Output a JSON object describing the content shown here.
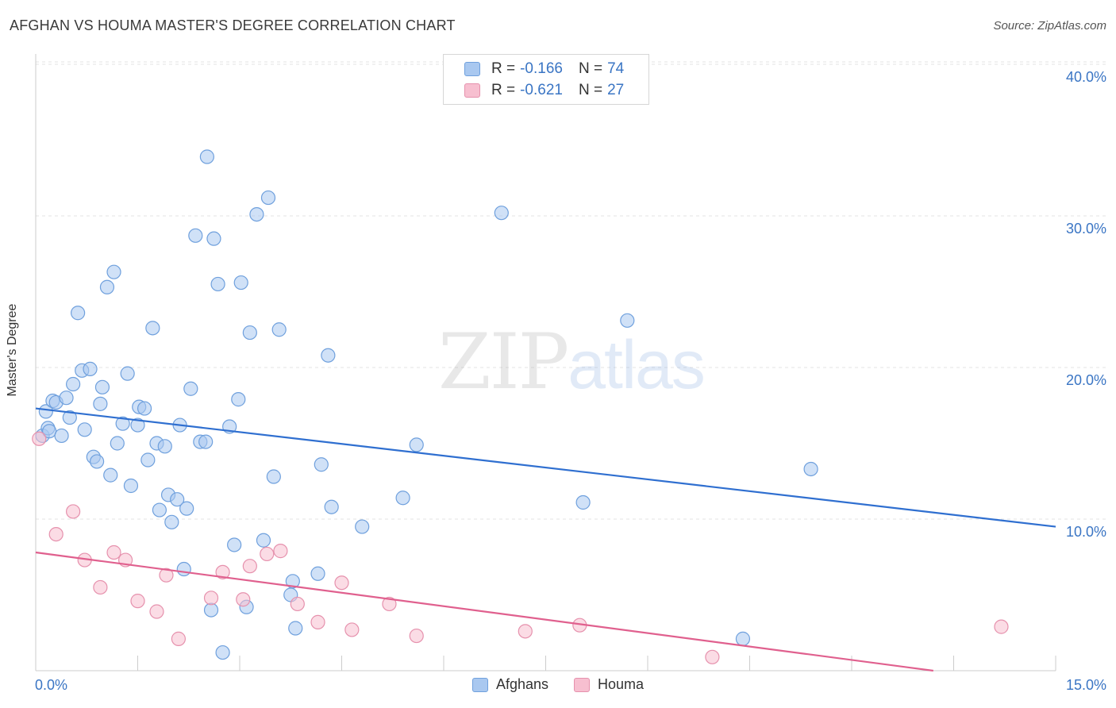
{
  "title": "AFGHAN VS HOUMA MASTER'S DEGREE CORRELATION CHART",
  "source": "Source: ZipAtlas.com",
  "watermark": {
    "left": "ZIP",
    "right": "atlas"
  },
  "colors": {
    "afghans_fill": "#a9c8f0",
    "afghans_stroke": "#6fa0dd",
    "afghans_line": "#2f6fd0",
    "houma_fill": "#f7bfd0",
    "houma_stroke": "#e691ad",
    "houma_line": "#e0608e",
    "tick_label": "#3a75c4",
    "grid": "#e3e3e3"
  },
  "legend_top": [
    {
      "r_label": "R = ",
      "r_value": "-0.166",
      "n_label": "N = ",
      "n_value": "74"
    },
    {
      "r_label": "R = ",
      "r_value": "-0.621",
      "n_label": "N = ",
      "n_value": "27"
    }
  ],
  "legend_bottom": [
    "Afghans",
    "Houma"
  ],
  "chart_data": {
    "type": "scatter",
    "xlabel": "",
    "ylabel": "Master's Degree",
    "xlim": [
      0,
      15
    ],
    "ylim": [
      0,
      41
    ],
    "x_tick_labels": [
      {
        "value": 0,
        "label": "0.0%"
      },
      {
        "value": 15,
        "label": "15.0%"
      }
    ],
    "y_tick_labels": [
      {
        "value": 10,
        "label": "10.0%"
      },
      {
        "value": 20,
        "label": "20.0%"
      },
      {
        "value": 30,
        "label": "30.0%"
      },
      {
        "value": 40,
        "label": "40.0%"
      }
    ],
    "grid": "horizontal-dashed",
    "legend_placement": "top-center",
    "series": [
      {
        "name": "Afghans",
        "trend": [
          [
            0,
            17.3
          ],
          [
            15,
            9.5
          ]
        ],
        "points": [
          [
            0.1,
            15.5
          ],
          [
            0.15,
            17.1
          ],
          [
            0.18,
            16.0
          ],
          [
            0.2,
            15.8
          ],
          [
            0.25,
            17.8
          ],
          [
            0.3,
            17.7
          ],
          [
            0.38,
            15.5
          ],
          [
            0.45,
            18.0
          ],
          [
            0.5,
            16.7
          ],
          [
            0.55,
            18.9
          ],
          [
            0.62,
            23.6
          ],
          [
            0.68,
            19.8
          ],
          [
            0.72,
            15.9
          ],
          [
            0.8,
            19.9
          ],
          [
            0.85,
            14.1
          ],
          [
            0.9,
            13.8
          ],
          [
            0.95,
            17.6
          ],
          [
            0.98,
            18.7
          ],
          [
            1.05,
            25.3
          ],
          [
            1.1,
            12.9
          ],
          [
            1.15,
            26.3
          ],
          [
            1.2,
            15.0
          ],
          [
            1.28,
            16.3
          ],
          [
            1.35,
            19.6
          ],
          [
            1.4,
            12.2
          ],
          [
            1.5,
            16.2
          ],
          [
            1.52,
            17.4
          ],
          [
            1.6,
            17.3
          ],
          [
            1.65,
            13.9
          ],
          [
            1.72,
            22.6
          ],
          [
            1.78,
            15.0
          ],
          [
            1.82,
            10.6
          ],
          [
            1.9,
            14.8
          ],
          [
            1.95,
            11.6
          ],
          [
            2.0,
            9.8
          ],
          [
            2.08,
            11.3
          ],
          [
            2.12,
            16.2
          ],
          [
            2.18,
            6.7
          ],
          [
            2.22,
            10.7
          ],
          [
            2.28,
            18.6
          ],
          [
            2.35,
            28.7
          ],
          [
            2.42,
            15.1
          ],
          [
            2.5,
            15.1
          ],
          [
            2.52,
            33.9
          ],
          [
            2.58,
            4.0
          ],
          [
            2.62,
            28.5
          ],
          [
            2.68,
            25.5
          ],
          [
            2.75,
            1.2
          ],
          [
            2.85,
            16.1
          ],
          [
            2.92,
            8.3
          ],
          [
            2.98,
            17.9
          ],
          [
            3.02,
            25.6
          ],
          [
            3.1,
            4.2
          ],
          [
            3.15,
            22.3
          ],
          [
            3.25,
            30.1
          ],
          [
            3.35,
            8.6
          ],
          [
            3.42,
            31.2
          ],
          [
            3.5,
            12.8
          ],
          [
            3.58,
            22.5
          ],
          [
            3.75,
            5.0
          ],
          [
            3.78,
            5.9
          ],
          [
            3.82,
            2.8
          ],
          [
            4.15,
            6.4
          ],
          [
            4.2,
            13.6
          ],
          [
            4.3,
            20.8
          ],
          [
            4.35,
            10.8
          ],
          [
            4.8,
            9.5
          ],
          [
            5.4,
            11.4
          ],
          [
            5.6,
            14.9
          ],
          [
            6.85,
            30.2
          ],
          [
            8.05,
            11.1
          ],
          [
            8.7,
            23.1
          ],
          [
            10.4,
            2.1
          ],
          [
            11.4,
            13.3
          ]
        ]
      },
      {
        "name": "Houma",
        "trend": [
          [
            0,
            7.8
          ],
          [
            13.2,
            0
          ]
        ],
        "points": [
          [
            0.05,
            15.3
          ],
          [
            0.3,
            9.0
          ],
          [
            0.55,
            10.5
          ],
          [
            0.72,
            7.3
          ],
          [
            0.95,
            5.5
          ],
          [
            1.15,
            7.8
          ],
          [
            1.32,
            7.3
          ],
          [
            1.5,
            4.6
          ],
          [
            1.78,
            3.9
          ],
          [
            1.92,
            6.3
          ],
          [
            2.1,
            2.1
          ],
          [
            2.58,
            4.8
          ],
          [
            2.75,
            6.5
          ],
          [
            3.05,
            4.7
          ],
          [
            3.15,
            6.9
          ],
          [
            3.4,
            7.7
          ],
          [
            3.6,
            7.9
          ],
          [
            3.85,
            4.4
          ],
          [
            4.15,
            3.2
          ],
          [
            4.5,
            5.8
          ],
          [
            4.65,
            2.7
          ],
          [
            5.2,
            4.4
          ],
          [
            5.6,
            2.3
          ],
          [
            7.2,
            2.6
          ],
          [
            8.0,
            3.0
          ],
          [
            9.95,
            0.9
          ],
          [
            14.2,
            2.9
          ]
        ]
      }
    ]
  }
}
